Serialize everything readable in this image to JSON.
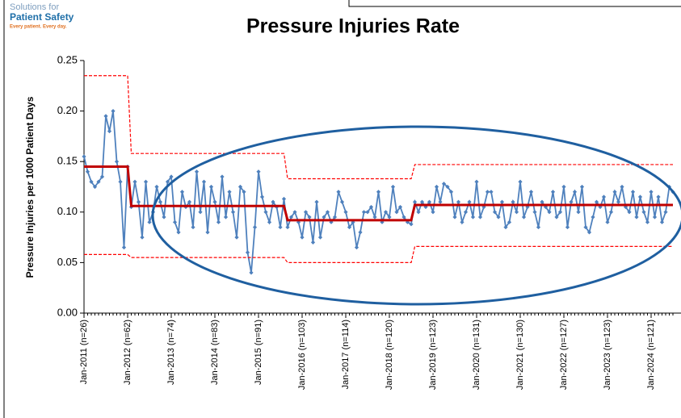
{
  "logo": {
    "line1": "Solutions for",
    "line2": "Patient Safety",
    "tagline": "Every patient. Every day."
  },
  "chart_data": {
    "type": "line",
    "title": "Pressure Injuries Rate",
    "y_label": "Pressure Injuries per 1000 Patient Days",
    "ylim": [
      0,
      0.25
    ],
    "yticks": [
      {
        "value": 0,
        "label": "0.00"
      },
      {
        "value": 0.05,
        "label": "0.05"
      },
      {
        "value": 0.1,
        "label": "0.10"
      },
      {
        "value": 0.15,
        "label": "0.15"
      },
      {
        "value": 0.2,
        "label": "0.20"
      },
      {
        "value": 0.25,
        "label": "0.25"
      }
    ],
    "categories": [
      "Jan-2011 (n=26)",
      null,
      null,
      null,
      null,
      null,
      null,
      null,
      null,
      null,
      null,
      null,
      "Jan-2012 (n=62)",
      null,
      null,
      null,
      null,
      null,
      null,
      null,
      null,
      null,
      null,
      null,
      "Jan-2013 (n=74)",
      null,
      null,
      null,
      null,
      null,
      null,
      null,
      null,
      null,
      null,
      null,
      "Jan-2014 (n=83)",
      null,
      null,
      null,
      null,
      null,
      null,
      null,
      null,
      null,
      null,
      null,
      "Jan-2015 (n=91)",
      null,
      null,
      null,
      null,
      null,
      null,
      null,
      null,
      null,
      null,
      null,
      "Jan-2016 (n=103)",
      null,
      null,
      null,
      null,
      null,
      null,
      null,
      null,
      null,
      null,
      null,
      "Jan-2017 (n=114)",
      null,
      null,
      null,
      null,
      null,
      null,
      null,
      null,
      null,
      null,
      null,
      "Jan-2018 (n=120)",
      null,
      null,
      null,
      null,
      null,
      null,
      null,
      null,
      null,
      null,
      null,
      "Jan-2019 (n=123)",
      null,
      null,
      null,
      null,
      null,
      null,
      null,
      null,
      null,
      null,
      null,
      "Jan-2020 (n=131)",
      null,
      null,
      null,
      null,
      null,
      null,
      null,
      null,
      null,
      null,
      null,
      "Jan-2021 (n=130)",
      null,
      null,
      null,
      null,
      null,
      null,
      null,
      null,
      null,
      null,
      null,
      "Jan-2022 (n=127)",
      null,
      null,
      null,
      null,
      null,
      null,
      null,
      null,
      null,
      null,
      null,
      "Jan-2023 (n=123)",
      null,
      null,
      null,
      null,
      null,
      null,
      null,
      null,
      null,
      null,
      null,
      "Jan-2024 (n=121)",
      null,
      null,
      null,
      null,
      null,
      null
    ],
    "series": [
      {
        "color": "#4f81bd",
        "values": [
          0.155,
          0.14,
          0.13,
          0.125,
          0.13,
          0.135,
          0.195,
          0.18,
          0.2,
          0.15,
          0.13,
          0.065,
          0.145,
          0.105,
          0.13,
          0.11,
          0.075,
          0.13,
          0.09,
          0.1,
          0.125,
          0.11,
          0.095,
          0.13,
          0.135,
          0.09,
          0.08,
          0.12,
          0.105,
          0.11,
          0.085,
          0.14,
          0.1,
          0.13,
          0.08,
          0.125,
          0.11,
          0.09,
          0.135,
          0.095,
          0.12,
          0.1,
          0.075,
          0.125,
          0.12,
          0.06,
          0.04,
          0.085,
          0.14,
          0.115,
          0.1,
          0.09,
          0.11,
          0.105,
          0.085,
          0.113,
          0.085,
          0.095,
          0.1,
          0.09,
          0.075,
          0.1,
          0.095,
          0.07,
          0.11,
          0.075,
          0.095,
          0.1,
          0.09,
          0.095,
          0.12,
          0.11,
          0.1,
          0.085,
          0.09,
          0.065,
          0.08,
          0.1,
          0.1,
          0.105,
          0.095,
          0.12,
          0.09,
          0.1,
          0.095,
          0.125,
          0.1,
          0.105,
          0.095,
          0.09,
          0.088,
          0.11,
          0.1,
          0.11,
          0.105,
          0.11,
          0.1,
          0.125,
          0.11,
          0.128,
          0.125,
          0.12,
          0.095,
          0.11,
          0.09,
          0.1,
          0.11,
          0.095,
          0.13,
          0.095,
          0.105,
          0.12,
          0.12,
          0.1,
          0.095,
          0.11,
          0.085,
          0.09,
          0.11,
          0.1,
          0.13,
          0.095,
          0.105,
          0.12,
          0.1,
          0.085,
          0.11,
          0.105,
          0.1,
          0.12,
          0.095,
          0.1,
          0.125,
          0.085,
          0.11,
          0.12,
          0.1,
          0.125,
          0.085,
          0.08,
          0.095,
          0.11,
          0.105,
          0.115,
          0.09,
          0.1,
          0.12,
          0.11,
          0.125,
          0.105,
          0.1,
          0.12,
          0.095,
          0.115,
          0.1,
          0.09,
          0.12,
          0.095,
          0.115,
          0.09,
          0.1,
          0.125,
          0.12
        ]
      },
      {
        "color": "#c00000",
        "values": [
          0.145,
          0.145,
          0.145,
          0.145,
          0.145,
          0.145,
          0.145,
          0.145,
          0.145,
          0.145,
          0.145,
          0.145,
          0.145,
          0.106,
          0.106,
          0.106,
          0.106,
          0.106,
          0.106,
          0.106,
          0.106,
          0.106,
          0.106,
          0.106,
          0.106,
          0.106,
          0.106,
          0.106,
          0.106,
          0.106,
          0.106,
          0.106,
          0.106,
          0.106,
          0.106,
          0.106,
          0.106,
          0.106,
          0.106,
          0.106,
          0.106,
          0.106,
          0.106,
          0.106,
          0.106,
          0.106,
          0.106,
          0.106,
          0.106,
          0.106,
          0.106,
          0.106,
          0.106,
          0.106,
          0.106,
          0.106,
          0.092,
          0.092,
          0.092,
          0.092,
          0.092,
          0.092,
          0.092,
          0.092,
          0.092,
          0.092,
          0.092,
          0.092,
          0.092,
          0.092,
          0.092,
          0.092,
          0.092,
          0.092,
          0.092,
          0.092,
          0.092,
          0.092,
          0.092,
          0.092,
          0.092,
          0.092,
          0.092,
          0.092,
          0.092,
          0.092,
          0.092,
          0.092,
          0.092,
          0.092,
          0.092,
          0.107,
          0.107,
          0.107,
          0.107,
          0.107,
          0.107,
          0.107,
          0.107,
          0.107,
          0.107,
          0.107,
          0.107,
          0.107,
          0.107,
          0.107,
          0.107,
          0.107,
          0.107,
          0.107,
          0.107,
          0.107,
          0.107,
          0.107,
          0.107,
          0.107,
          0.107,
          0.107,
          0.107,
          0.107,
          0.107,
          0.107,
          0.107,
          0.107,
          0.107,
          0.107,
          0.107,
          0.107,
          0.107,
          0.107,
          0.107,
          0.107,
          0.107,
          0.107,
          0.107,
          0.107,
          0.107,
          0.107,
          0.107,
          0.107,
          0.107,
          0.107,
          0.107,
          0.107,
          0.107,
          0.107,
          0.107,
          0.107,
          0.107,
          0.107,
          0.107,
          0.107,
          0.107,
          0.107,
          0.107,
          0.107,
          0.107,
          0.107,
          0.107,
          0.107,
          0.107,
          0.107,
          0.107
        ]
      },
      {
        "color": "#ff0000",
        "dashed": true,
        "values": [
          0.235,
          0.235,
          0.235,
          0.235,
          0.235,
          0.235,
          0.235,
          0.235,
          0.235,
          0.235,
          0.235,
          0.235,
          0.235,
          0.158,
          0.158,
          0.158,
          0.158,
          0.158,
          0.158,
          0.158,
          0.158,
          0.158,
          0.158,
          0.158,
          0.158,
          0.158,
          0.158,
          0.158,
          0.158,
          0.158,
          0.158,
          0.158,
          0.158,
          0.158,
          0.158,
          0.158,
          0.158,
          0.158,
          0.158,
          0.158,
          0.158,
          0.158,
          0.158,
          0.158,
          0.158,
          0.158,
          0.158,
          0.158,
          0.158,
          0.158,
          0.158,
          0.158,
          0.158,
          0.158,
          0.158,
          0.158,
          0.133,
          0.133,
          0.133,
          0.133,
          0.133,
          0.133,
          0.133,
          0.133,
          0.133,
          0.133,
          0.133,
          0.133,
          0.133,
          0.133,
          0.133,
          0.133,
          0.133,
          0.133,
          0.133,
          0.133,
          0.133,
          0.133,
          0.133,
          0.133,
          0.133,
          0.133,
          0.133,
          0.133,
          0.133,
          0.133,
          0.133,
          0.133,
          0.133,
          0.133,
          0.133,
          0.147,
          0.147,
          0.147,
          0.147,
          0.147,
          0.147,
          0.147,
          0.147,
          0.147,
          0.147,
          0.147,
          0.147,
          0.147,
          0.147,
          0.147,
          0.147,
          0.147,
          0.147,
          0.147,
          0.147,
          0.147,
          0.147,
          0.147,
          0.147,
          0.147,
          0.147,
          0.147,
          0.147,
          0.147,
          0.147,
          0.147,
          0.147,
          0.147,
          0.147,
          0.147,
          0.147,
          0.147,
          0.147,
          0.147,
          0.147,
          0.147,
          0.147,
          0.147,
          0.147,
          0.147,
          0.147,
          0.147,
          0.147,
          0.147,
          0.147,
          0.147,
          0.147,
          0.147,
          0.147,
          0.147,
          0.147,
          0.147,
          0.147,
          0.147,
          0.147,
          0.147,
          0.147,
          0.147,
          0.147,
          0.147,
          0.147,
          0.147,
          0.147,
          0.147,
          0.147,
          0.147,
          0.147
        ]
      },
      {
        "color": "#ff0000",
        "dashed": true,
        "values": [
          0.058,
          0.058,
          0.058,
          0.058,
          0.058,
          0.058,
          0.058,
          0.058,
          0.058,
          0.058,
          0.058,
          0.058,
          0.058,
          0.055,
          0.055,
          0.055,
          0.055,
          0.055,
          0.055,
          0.055,
          0.055,
          0.055,
          0.055,
          0.055,
          0.055,
          0.055,
          0.055,
          0.055,
          0.055,
          0.055,
          0.055,
          0.055,
          0.055,
          0.055,
          0.055,
          0.055,
          0.055,
          0.055,
          0.055,
          0.055,
          0.055,
          0.055,
          0.055,
          0.055,
          0.055,
          0.055,
          0.055,
          0.055,
          0.055,
          0.055,
          0.055,
          0.055,
          0.055,
          0.055,
          0.055,
          0.055,
          0.05,
          0.05,
          0.05,
          0.05,
          0.05,
          0.05,
          0.05,
          0.05,
          0.05,
          0.05,
          0.05,
          0.05,
          0.05,
          0.05,
          0.05,
          0.05,
          0.05,
          0.05,
          0.05,
          0.05,
          0.05,
          0.05,
          0.05,
          0.05,
          0.05,
          0.05,
          0.05,
          0.05,
          0.05,
          0.05,
          0.05,
          0.05,
          0.05,
          0.05,
          0.05,
          0.066,
          0.066,
          0.066,
          0.066,
          0.066,
          0.066,
          0.066,
          0.066,
          0.066,
          0.066,
          0.066,
          0.066,
          0.066,
          0.066,
          0.066,
          0.066,
          0.066,
          0.066,
          0.066,
          0.066,
          0.066,
          0.066,
          0.066,
          0.066,
          0.066,
          0.066,
          0.066,
          0.066,
          0.066,
          0.066,
          0.066,
          0.066,
          0.066,
          0.066,
          0.066,
          0.066,
          0.066,
          0.066,
          0.066,
          0.066,
          0.066,
          0.066,
          0.066,
          0.066,
          0.066,
          0.066,
          0.066,
          0.066,
          0.066,
          0.066,
          0.066,
          0.066,
          0.066,
          0.066,
          0.066,
          0.066,
          0.066,
          0.066,
          0.066,
          0.066,
          0.066,
          0.066,
          0.066,
          0.066,
          0.066,
          0.066,
          0.066,
          0.066,
          0.066,
          0.066,
          0.066,
          0.066
        ]
      }
    ]
  }
}
